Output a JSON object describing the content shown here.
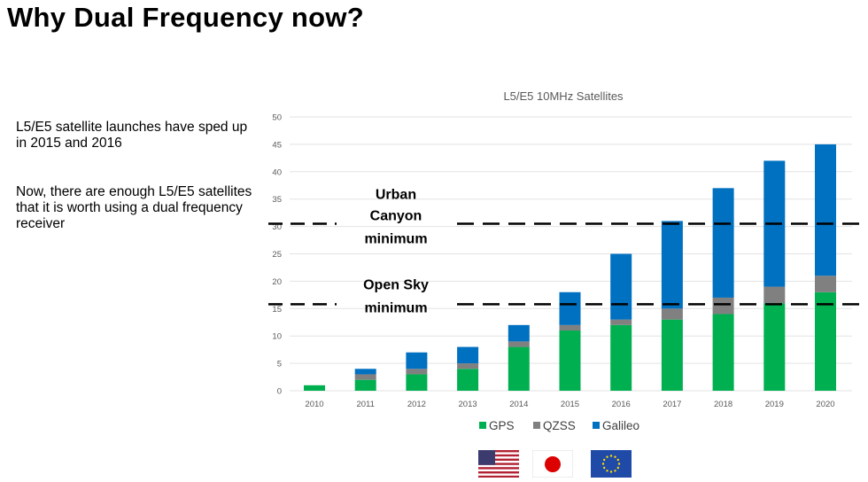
{
  "title": "Why Dual Frequency now?",
  "paragraphs": [
    "L5/E5 satellite launches have sped up in 2015 and 2016",
    "Now, there are enough L5/E5 satellites that it is worth using a dual frequency receiver"
  ],
  "chart_data": {
    "type": "bar",
    "stacked": true,
    "title": "L5/E5 10MHz Satellites",
    "categories": [
      "2010",
      "2011",
      "2012",
      "2013",
      "2014",
      "2015",
      "2016",
      "2017",
      "2018",
      "2019",
      "2020"
    ],
    "series": [
      {
        "name": "GPS",
        "color": "#00b050",
        "values": [
          1,
          2,
          3,
          4,
          8,
          11,
          12,
          13,
          14,
          16,
          18
        ]
      },
      {
        "name": "QZSS",
        "color": "#808080",
        "values": [
          0,
          1,
          1,
          1,
          1,
          1,
          1,
          2,
          3,
          3,
          3
        ]
      },
      {
        "name": "Galileo",
        "color": "#0070c0",
        "values": [
          0,
          1,
          3,
          3,
          3,
          6,
          12,
          16,
          20,
          23,
          24
        ]
      }
    ],
    "ylim": [
      0,
      50
    ],
    "yticks": [
      0,
      5,
      10,
      15,
      20,
      25,
      30,
      35,
      40,
      45,
      50
    ],
    "grid": true,
    "legend": "bottom",
    "reference_lines": [
      {
        "value": 30.5,
        "label_lines": [
          "Urban",
          "Canyon",
          "minimum"
        ]
      },
      {
        "value": 15.8,
        "label_lines": [
          "Open Sky",
          "minimum"
        ]
      }
    ]
  },
  "flags": [
    "us-flag",
    "japan-flag",
    "eu-flag"
  ]
}
